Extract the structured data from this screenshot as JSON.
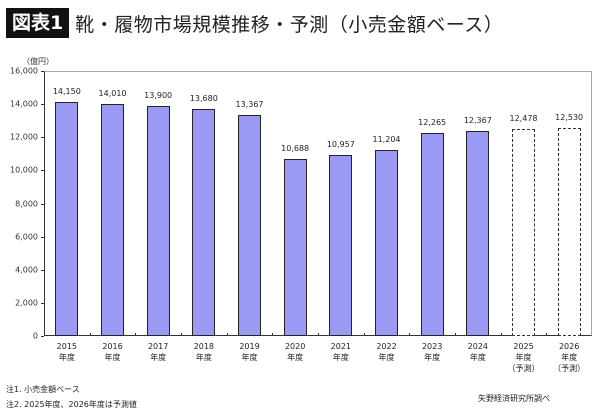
{
  "header": {
    "badge": "図表1",
    "title": "靴・履物市場規模推移・予測（小売金額ベース）"
  },
  "chart_data": {
    "type": "bar",
    "title": "靴・履物市場規模推移・予測（小売金額ベース）",
    "ylabel": "（億円）",
    "xlabel": "",
    "ylim": [
      0,
      16000
    ],
    "yticks": [
      "0",
      "2,000",
      "4,000",
      "6,000",
      "8,000",
      "10,000",
      "12,000",
      "14,000",
      "16,000"
    ],
    "categories": [
      "2015年度",
      "2016年度",
      "2017年度",
      "2018年度",
      "2019年度",
      "2020年度",
      "2021年度",
      "2022年度",
      "2023年度",
      "2024年度",
      "2025年度（予測）",
      "2026年度（予測）"
    ],
    "values": [
      14150,
      14010,
      13900,
      13680,
      13367,
      10688,
      10957,
      11204,
      12265,
      12367,
      12478,
      12530
    ],
    "value_labels": [
      "14,150",
      "14,010",
      "13,900",
      "13,680",
      "13,367",
      "10,688",
      "10,957",
      "11,204",
      "12,265",
      "12,367",
      "12,478",
      "12,530"
    ],
    "forecast": [
      false,
      false,
      false,
      false,
      false,
      false,
      false,
      false,
      false,
      false,
      true,
      true
    ],
    "grid": false,
    "legend": null
  },
  "axis": {
    "unit": "（億円）",
    "x": [
      {
        "year": "2015",
        "suffix": "年度",
        "note": ""
      },
      {
        "year": "2016",
        "suffix": "年度",
        "note": ""
      },
      {
        "year": "2017",
        "suffix": "年度",
        "note": ""
      },
      {
        "year": "2018",
        "suffix": "年度",
        "note": ""
      },
      {
        "year": "2019",
        "suffix": "年度",
        "note": ""
      },
      {
        "year": "2020",
        "suffix": "年度",
        "note": ""
      },
      {
        "year": "2021",
        "suffix": "年度",
        "note": ""
      },
      {
        "year": "2022",
        "suffix": "年度",
        "note": ""
      },
      {
        "year": "2023",
        "suffix": "年度",
        "note": ""
      },
      {
        "year": "2024",
        "suffix": "年度",
        "note": ""
      },
      {
        "year": "2025",
        "suffix": "年度",
        "note": "（予測）"
      },
      {
        "year": "2026",
        "suffix": "年度",
        "note": "（予測）"
      }
    ]
  },
  "colors": {
    "bar_fill": "#9a9af5",
    "bar_border": "#222222",
    "forecast_fill": "#ffffff"
  },
  "footer": {
    "note1": "注1. 小売金額ベース",
    "note2": "注2. 2025年度、2026年度は予測値",
    "source": "矢野経済研究所調べ"
  }
}
